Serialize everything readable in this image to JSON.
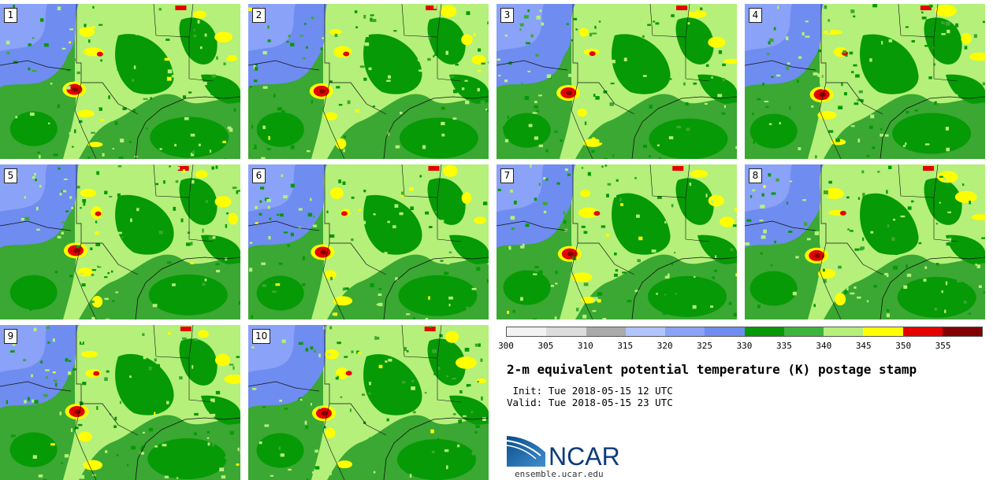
{
  "title": "2-m equivalent potential temperature (K) postage stamp",
  "init": {
    "label": " Init:",
    "value": "Tue 2018-05-15 12 UTC"
  },
  "valid": {
    "label": "Valid:",
    "value": "Tue 2018-05-15 23 UTC"
  },
  "members": [
    "1",
    "2",
    "3",
    "4",
    "5",
    "6",
    "7",
    "8",
    "9",
    "10"
  ],
  "colorbar": {
    "ticks": [
      "300",
      "305",
      "310",
      "315",
      "320",
      "325",
      "330",
      "335",
      "340",
      "345",
      "350",
      "355"
    ],
    "colors": [
      "#f2f2f2",
      "#dcdcdc",
      "#aaaaaa",
      "#b0c4ff",
      "#8aa2f7",
      "#6f8cf0",
      "#069a06",
      "#3cb53c",
      "#b4f07a",
      "#ffff00",
      "#e60000",
      "#820000"
    ]
  },
  "logo": {
    "text": "NCAR",
    "url": "ensemble.ucar.edu"
  }
}
